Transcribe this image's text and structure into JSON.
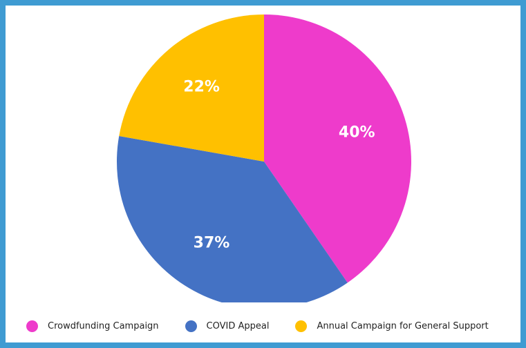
{
  "colors": {
    "background": "#3f9bd2",
    "card": "#ffffff"
  },
  "chart_data": {
    "type": "pie",
    "title": "",
    "slices": [
      {
        "label": "Crowdfunding Campaign",
        "value": 40,
        "display": "40%",
        "color": "#ee3bcb"
      },
      {
        "label": "COVID Appeal",
        "value": 37,
        "display": "37%",
        "color": "#4472c4"
      },
      {
        "label": "Annual Campaign for General Support",
        "value": 22,
        "display": "22%",
        "color": "#ffc000"
      }
    ],
    "start_angle_deg": 0,
    "direction": "clockwise",
    "legend_position": "bottom-left"
  }
}
